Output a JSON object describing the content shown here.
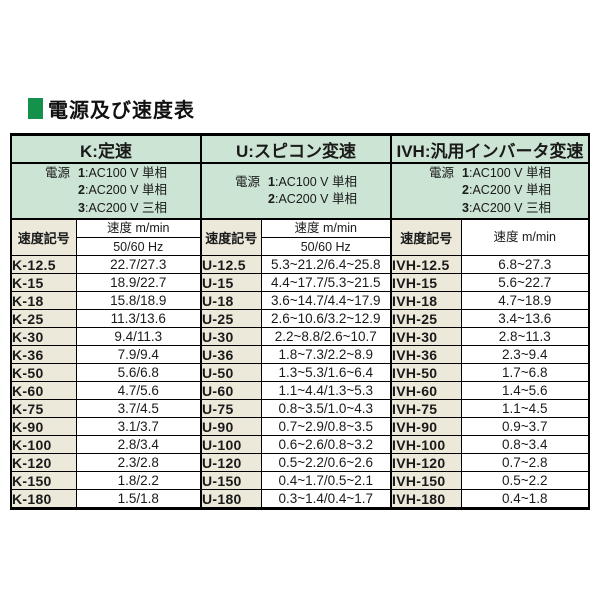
{
  "page": {
    "title": "電源及び速度表"
  },
  "colors": {
    "square_green": "#14914b",
    "header_green": "#cbe4d3",
    "symbol_beige": "#ece8da",
    "border_black": "#000000"
  },
  "table": {
    "sections": [
      {
        "id": "K",
        "header": "K:定速",
        "power_label": "電源",
        "power_options": [
          {
            "num": "1",
            "desc": "AC100 V 単相"
          },
          {
            "num": "2",
            "desc": "AC200 V 単相"
          },
          {
            "num": "3",
            "desc": "AC200 V 三相"
          }
        ],
        "symbol_header": "速度記号",
        "speed_header": "速度 m/min",
        "speed_subheader": "50/60 Hz",
        "rows": [
          [
            "K-12.5",
            "22.7/27.3"
          ],
          [
            "K-15",
            "18.9/22.7"
          ],
          [
            "K-18",
            "15.8/18.9"
          ],
          [
            "K-25",
            "11.3/13.6"
          ],
          [
            "K-30",
            "9.4/11.3"
          ],
          [
            "K-36",
            "7.9/9.4"
          ],
          [
            "K-50",
            "5.6/6.8"
          ],
          [
            "K-60",
            "4.7/5.6"
          ],
          [
            "K-75",
            "3.7/4.5"
          ],
          [
            "K-90",
            "3.1/3.7"
          ],
          [
            "K-100",
            "2.8/3.4"
          ],
          [
            "K-120",
            "2.3/2.8"
          ],
          [
            "K-150",
            "1.8/2.2"
          ],
          [
            "K-180",
            "1.5/1.8"
          ]
        ]
      },
      {
        "id": "U",
        "header": "U:スピコン変速",
        "power_label": "電源",
        "power_options": [
          {
            "num": "1",
            "desc": "AC100 V 単相"
          },
          {
            "num": "2",
            "desc": "AC200 V 単相"
          }
        ],
        "symbol_header": "速度記号",
        "speed_header": "速度 m/min",
        "speed_subheader": "50/60 Hz",
        "rows": [
          [
            "U-12.5",
            "5.3~21.2/6.4~25.8"
          ],
          [
            "U-15",
            "4.4~17.7/5.3~21.5"
          ],
          [
            "U-18",
            "3.6~14.7/4.4~17.9"
          ],
          [
            "U-25",
            "2.6~10.6/3.2~12.9"
          ],
          [
            "U-30",
            "2.2~8.8/2.6~10.7"
          ],
          [
            "U-36",
            "1.8~7.3/2.2~8.9"
          ],
          [
            "U-50",
            "1.3~5.3/1.6~6.4"
          ],
          [
            "U-60",
            "1.1~4.4/1.3~5.3"
          ],
          [
            "U-75",
            "0.8~3.5/1.0~4.3"
          ],
          [
            "U-90",
            "0.7~2.9/0.8~3.5"
          ],
          [
            "U-100",
            "0.6~2.6/0.8~3.2"
          ],
          [
            "U-120",
            "0.5~2.2/0.6~2.6"
          ],
          [
            "U-150",
            "0.4~1.7/0.5~2.1"
          ],
          [
            "U-180",
            "0.3~1.4/0.4~1.7"
          ]
        ]
      },
      {
        "id": "IVH",
        "header": "IVH:汎用インバータ変速",
        "power_label": "電源",
        "power_options": [
          {
            "num": "1",
            "desc": "AC100 V 単相"
          },
          {
            "num": "2",
            "desc": "AC200 V 単相"
          },
          {
            "num": "3",
            "desc": "AC200 V 三相"
          }
        ],
        "symbol_header": "速度記号",
        "speed_header": "速度 m/min",
        "speed_subheader": null,
        "rows": [
          [
            "IVH-12.5",
            "6.8~27.3"
          ],
          [
            "IVH-15",
            "5.6~22.7"
          ],
          [
            "IVH-18",
            "4.7~18.9"
          ],
          [
            "IVH-25",
            "3.4~13.6"
          ],
          [
            "IVH-30",
            "2.8~11.3"
          ],
          [
            "IVH-36",
            "2.3~9.4"
          ],
          [
            "IVH-50",
            "1.7~6.8"
          ],
          [
            "IVH-60",
            "1.4~5.6"
          ],
          [
            "IVH-75",
            "1.1~4.5"
          ],
          [
            "IVH-90",
            "0.9~3.7"
          ],
          [
            "IVH-100",
            "0.8~3.4"
          ],
          [
            "IVH-120",
            "0.7~2.8"
          ],
          [
            "IVH-150",
            "0.5~2.2"
          ],
          [
            "IVH-180",
            "0.4~1.8"
          ]
        ]
      }
    ]
  }
}
